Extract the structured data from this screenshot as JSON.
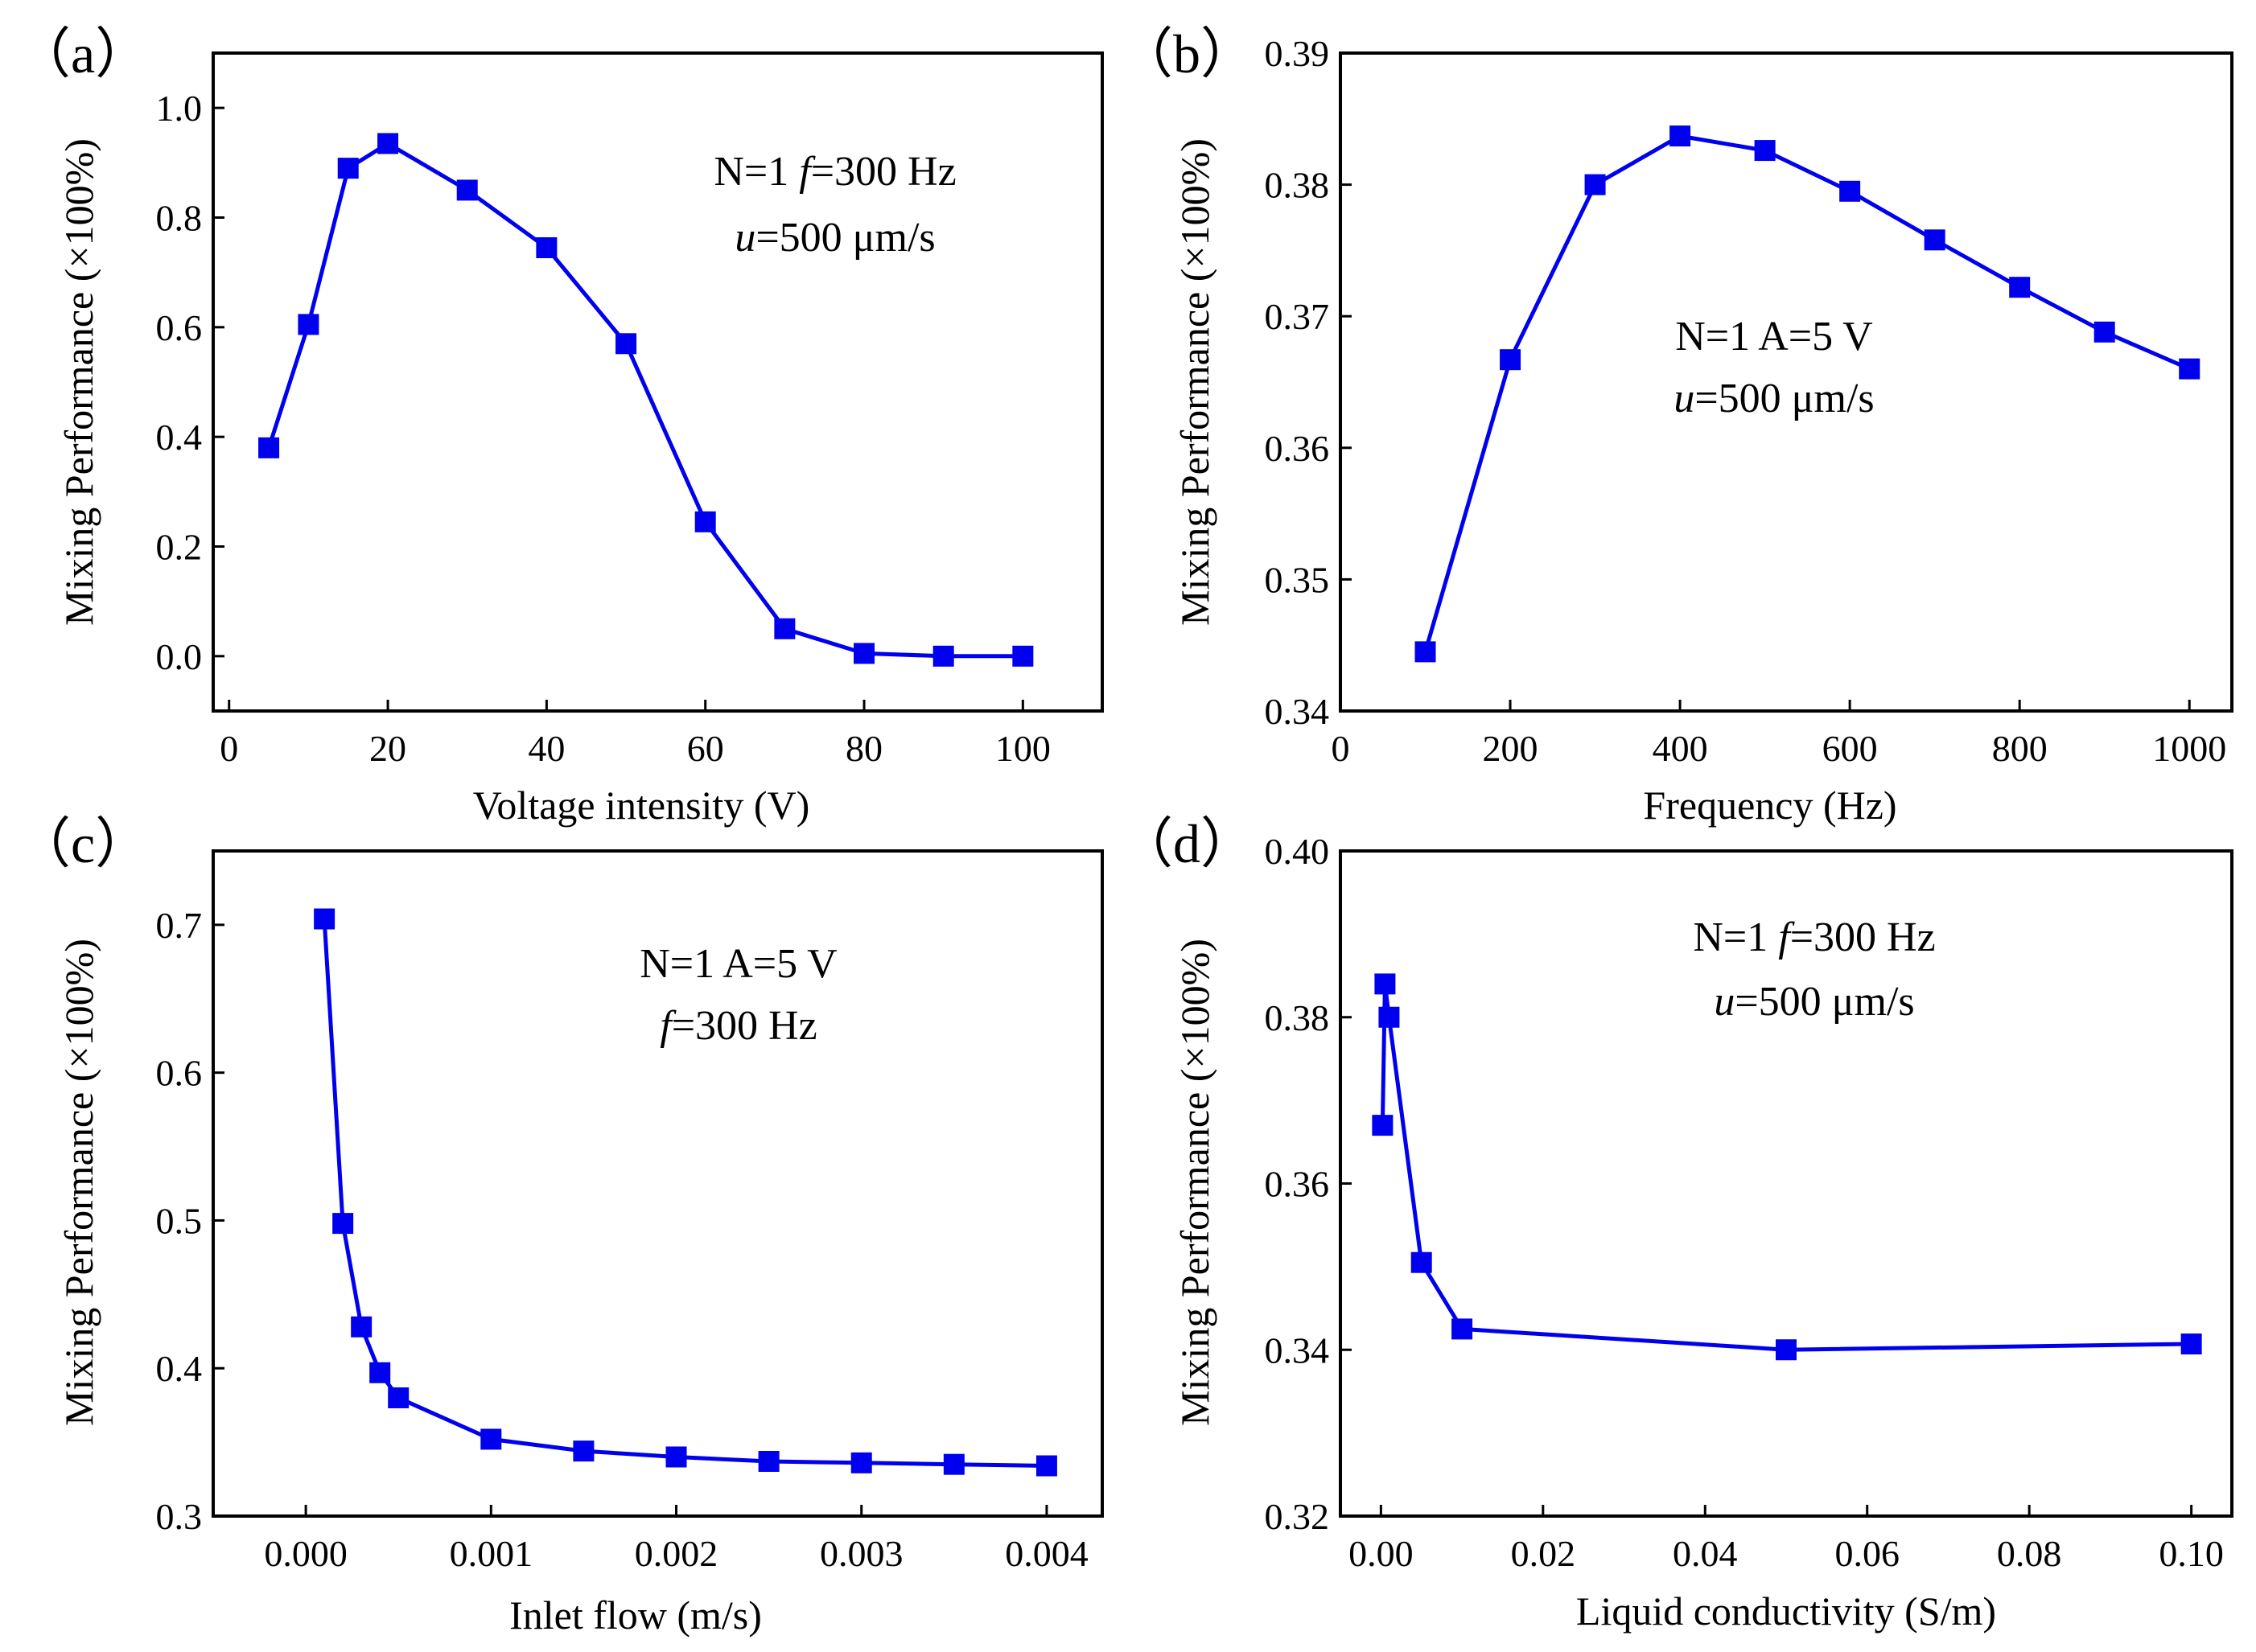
{
  "chart_data": [
    {
      "type": "line",
      "panel_label": "（a）",
      "title": "",
      "xlabel": "Voltage intensity (V)",
      "ylabel": "Mixing Performance (×100%)",
      "xlim": [
        -2,
        110
      ],
      "ylim": [
        -0.1,
        1.1
      ],
      "xticks": [
        0,
        20,
        40,
        60,
        80,
        100
      ],
      "yticks": [
        0.0,
        0.2,
        0.4,
        0.6,
        0.8,
        1.0
      ],
      "xtick_labels": [
        "0",
        "20",
        "40",
        "60",
        "80",
        "100"
      ],
      "ytick_labels": [
        "0.0",
        "0.2",
        "0.4",
        "0.6",
        "0.8",
        "1.0"
      ],
      "annotation": [
        "N=1 f=300 Hz",
        "u=500 μm/s"
      ],
      "series": [
        {
          "name": "mixing",
          "color": "#0000ee",
          "marker": "square",
          "x": [
            5,
            10,
            15,
            20,
            30,
            40,
            50,
            60,
            70,
            80,
            90,
            100
          ],
          "y": [
            0.38,
            0.605,
            0.89,
            0.935,
            0.85,
            0.745,
            0.57,
            0.245,
            0.05,
            0.005,
            0.0,
            0.0
          ]
        }
      ]
    },
    {
      "type": "line",
      "panel_label": "（b）",
      "title": "",
      "xlabel": "Frequency (Hz)",
      "ylabel": "Mixing Performance (×100%)",
      "xlim": [
        0,
        1050
      ],
      "ylim": [
        0.34,
        0.39
      ],
      "xticks": [
        0,
        200,
        400,
        600,
        800,
        1000
      ],
      "yticks": [
        0.34,
        0.35,
        0.36,
        0.37,
        0.38,
        0.39
      ],
      "xtick_labels": [
        "0",
        "200",
        "400",
        "600",
        "800",
        "1000"
      ],
      "ytick_labels": [
        "0.34",
        "0.35",
        "0.36",
        "0.37",
        "0.38",
        "0.39"
      ],
      "annotation": [
        "N=1 A=5 V",
        "u=500 μm/s"
      ],
      "series": [
        {
          "name": "mixing",
          "color": "#0000ee",
          "marker": "square",
          "x": [
            100,
            200,
            300,
            400,
            500,
            600,
            700,
            800,
            900,
            1000
          ],
          "y": [
            0.3445,
            0.3667,
            0.38,
            0.3837,
            0.3826,
            0.3795,
            0.3758,
            0.3722,
            0.3688,
            0.366
          ]
        }
      ]
    },
    {
      "type": "line",
      "panel_label": "（c）",
      "title": "",
      "xlabel": "Inlet flow (m/s)",
      "ylabel": "Mixing Performance (×100%)",
      "xlim": [
        -0.0005,
        0.0043
      ],
      "ylim": [
        0.3,
        0.75
      ],
      "xticks": [
        0.0,
        0.001,
        0.002,
        0.003,
        0.004
      ],
      "yticks": [
        0.3,
        0.4,
        0.5,
        0.6,
        0.7
      ],
      "xtick_labels": [
        "0.000",
        "0.001",
        "0.002",
        "0.003",
        "0.004"
      ],
      "ytick_labels": [
        "0.3",
        "0.4",
        "0.5",
        "0.6",
        "0.7"
      ],
      "annotation": [
        "N=1 A=5 V",
        "f=300 Hz"
      ],
      "series": [
        {
          "name": "mixing",
          "color": "#0000ee",
          "marker": "square",
          "x": [
            0.0001,
            0.0002,
            0.0003,
            0.0004,
            0.0005,
            0.001,
            0.0015,
            0.002,
            0.0025,
            0.003,
            0.0035,
            0.004
          ],
          "y": [
            0.704,
            0.498,
            0.428,
            0.397,
            0.38,
            0.352,
            0.344,
            0.34,
            0.337,
            0.336,
            0.335,
            0.334
          ]
        }
      ]
    },
    {
      "type": "line",
      "panel_label": "（d）",
      "title": "",
      "xlabel": "Liquid conductivity (S/m)",
      "ylabel": "Mixing Performance (×100%)",
      "xlim": [
        -0.005,
        0.105
      ],
      "ylim": [
        0.32,
        0.4
      ],
      "xticks": [
        0.0,
        0.02,
        0.04,
        0.06,
        0.08,
        0.1
      ],
      "yticks": [
        0.32,
        0.34,
        0.36,
        0.38,
        0.4
      ],
      "xtick_labels": [
        "0.00",
        "0.02",
        "0.04",
        "0.06",
        "0.08",
        "0.10"
      ],
      "ytick_labels": [
        "0.32",
        "0.34",
        "0.36",
        "0.38",
        "0.40"
      ],
      "annotation": [
        "N=1 f=300 Hz",
        "u=500 μm/s"
      ],
      "series": [
        {
          "name": "mixing",
          "color": "#0000ee",
          "marker": "square",
          "x": [
            0.0002,
            0.0005,
            0.001,
            0.005,
            0.01,
            0.05,
            0.1
          ],
          "y": [
            0.367,
            0.384,
            0.38,
            0.3505,
            0.3425,
            0.34,
            0.3407
          ]
        }
      ]
    }
  ]
}
